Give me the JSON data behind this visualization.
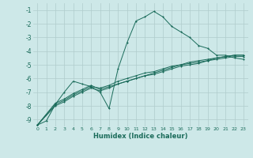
{
  "xlabel": "Humidex (Indice chaleur)",
  "bg_color": "#cde8e8",
  "grid_color": "#b0cccc",
  "line_color": "#1a6b5a",
  "xlim": [
    -0.5,
    23.5
  ],
  "ylim": [
    -9.5,
    -0.5
  ],
  "xticks": [
    0,
    1,
    2,
    3,
    4,
    5,
    6,
    7,
    8,
    9,
    10,
    11,
    12,
    13,
    14,
    15,
    16,
    17,
    18,
    19,
    20,
    21,
    22,
    23
  ],
  "yticks": [
    -9,
    -8,
    -7,
    -6,
    -5,
    -4,
    -3,
    -2,
    -1
  ],
  "series1_x": [
    0,
    1,
    2,
    3,
    4,
    5,
    6,
    7,
    8,
    9,
    10,
    11,
    12,
    13,
    14,
    15,
    16,
    17,
    18,
    19,
    20,
    21,
    22,
    23
  ],
  "series1_y": [
    -9.4,
    -9.1,
    -7.9,
    -7.0,
    -6.2,
    -6.4,
    -6.6,
    -7.0,
    -8.2,
    -5.3,
    -3.4,
    -1.8,
    -1.5,
    -1.1,
    -1.5,
    -2.2,
    -2.6,
    -3.0,
    -3.6,
    -3.8,
    -4.3,
    -4.3,
    -4.5,
    -4.6
  ],
  "series2_x": [
    0,
    2,
    3,
    4,
    5,
    6,
    7,
    8,
    9,
    10,
    11,
    12,
    13,
    14,
    15,
    16,
    17,
    18,
    19,
    20,
    21,
    22,
    23
  ],
  "series2_y": [
    -9.4,
    -7.8,
    -7.5,
    -7.1,
    -6.8,
    -6.5,
    -6.8,
    -6.6,
    -6.4,
    -6.2,
    -6.0,
    -5.8,
    -5.7,
    -5.5,
    -5.3,
    -5.1,
    -5.0,
    -4.9,
    -4.7,
    -4.6,
    -4.5,
    -4.4,
    -4.4
  ],
  "series3_x": [
    0,
    2,
    3,
    4,
    5,
    6,
    7,
    8,
    9,
    10,
    11,
    12,
    13,
    14,
    15,
    16,
    17,
    18,
    19,
    20,
    21,
    22,
    23
  ],
  "series3_y": [
    -9.4,
    -7.9,
    -7.6,
    -7.2,
    -6.9,
    -6.6,
    -6.7,
    -6.5,
    -6.2,
    -6.0,
    -5.8,
    -5.6,
    -5.5,
    -5.3,
    -5.1,
    -5.0,
    -4.8,
    -4.7,
    -4.6,
    -4.5,
    -4.4,
    -4.3,
    -4.3
  ],
  "series4_x": [
    0,
    2,
    3,
    4,
    5,
    6,
    7,
    8,
    9,
    10,
    11,
    12,
    13,
    14,
    15,
    16,
    17,
    18,
    19,
    20,
    21,
    22,
    23
  ],
  "series4_y": [
    -9.4,
    -8.0,
    -7.7,
    -7.3,
    -7.0,
    -6.7,
    -6.9,
    -6.7,
    -6.4,
    -6.2,
    -6.0,
    -5.8,
    -5.6,
    -5.4,
    -5.2,
    -5.0,
    -4.9,
    -4.8,
    -4.7,
    -4.5,
    -4.4,
    -4.3,
    -4.3
  ]
}
